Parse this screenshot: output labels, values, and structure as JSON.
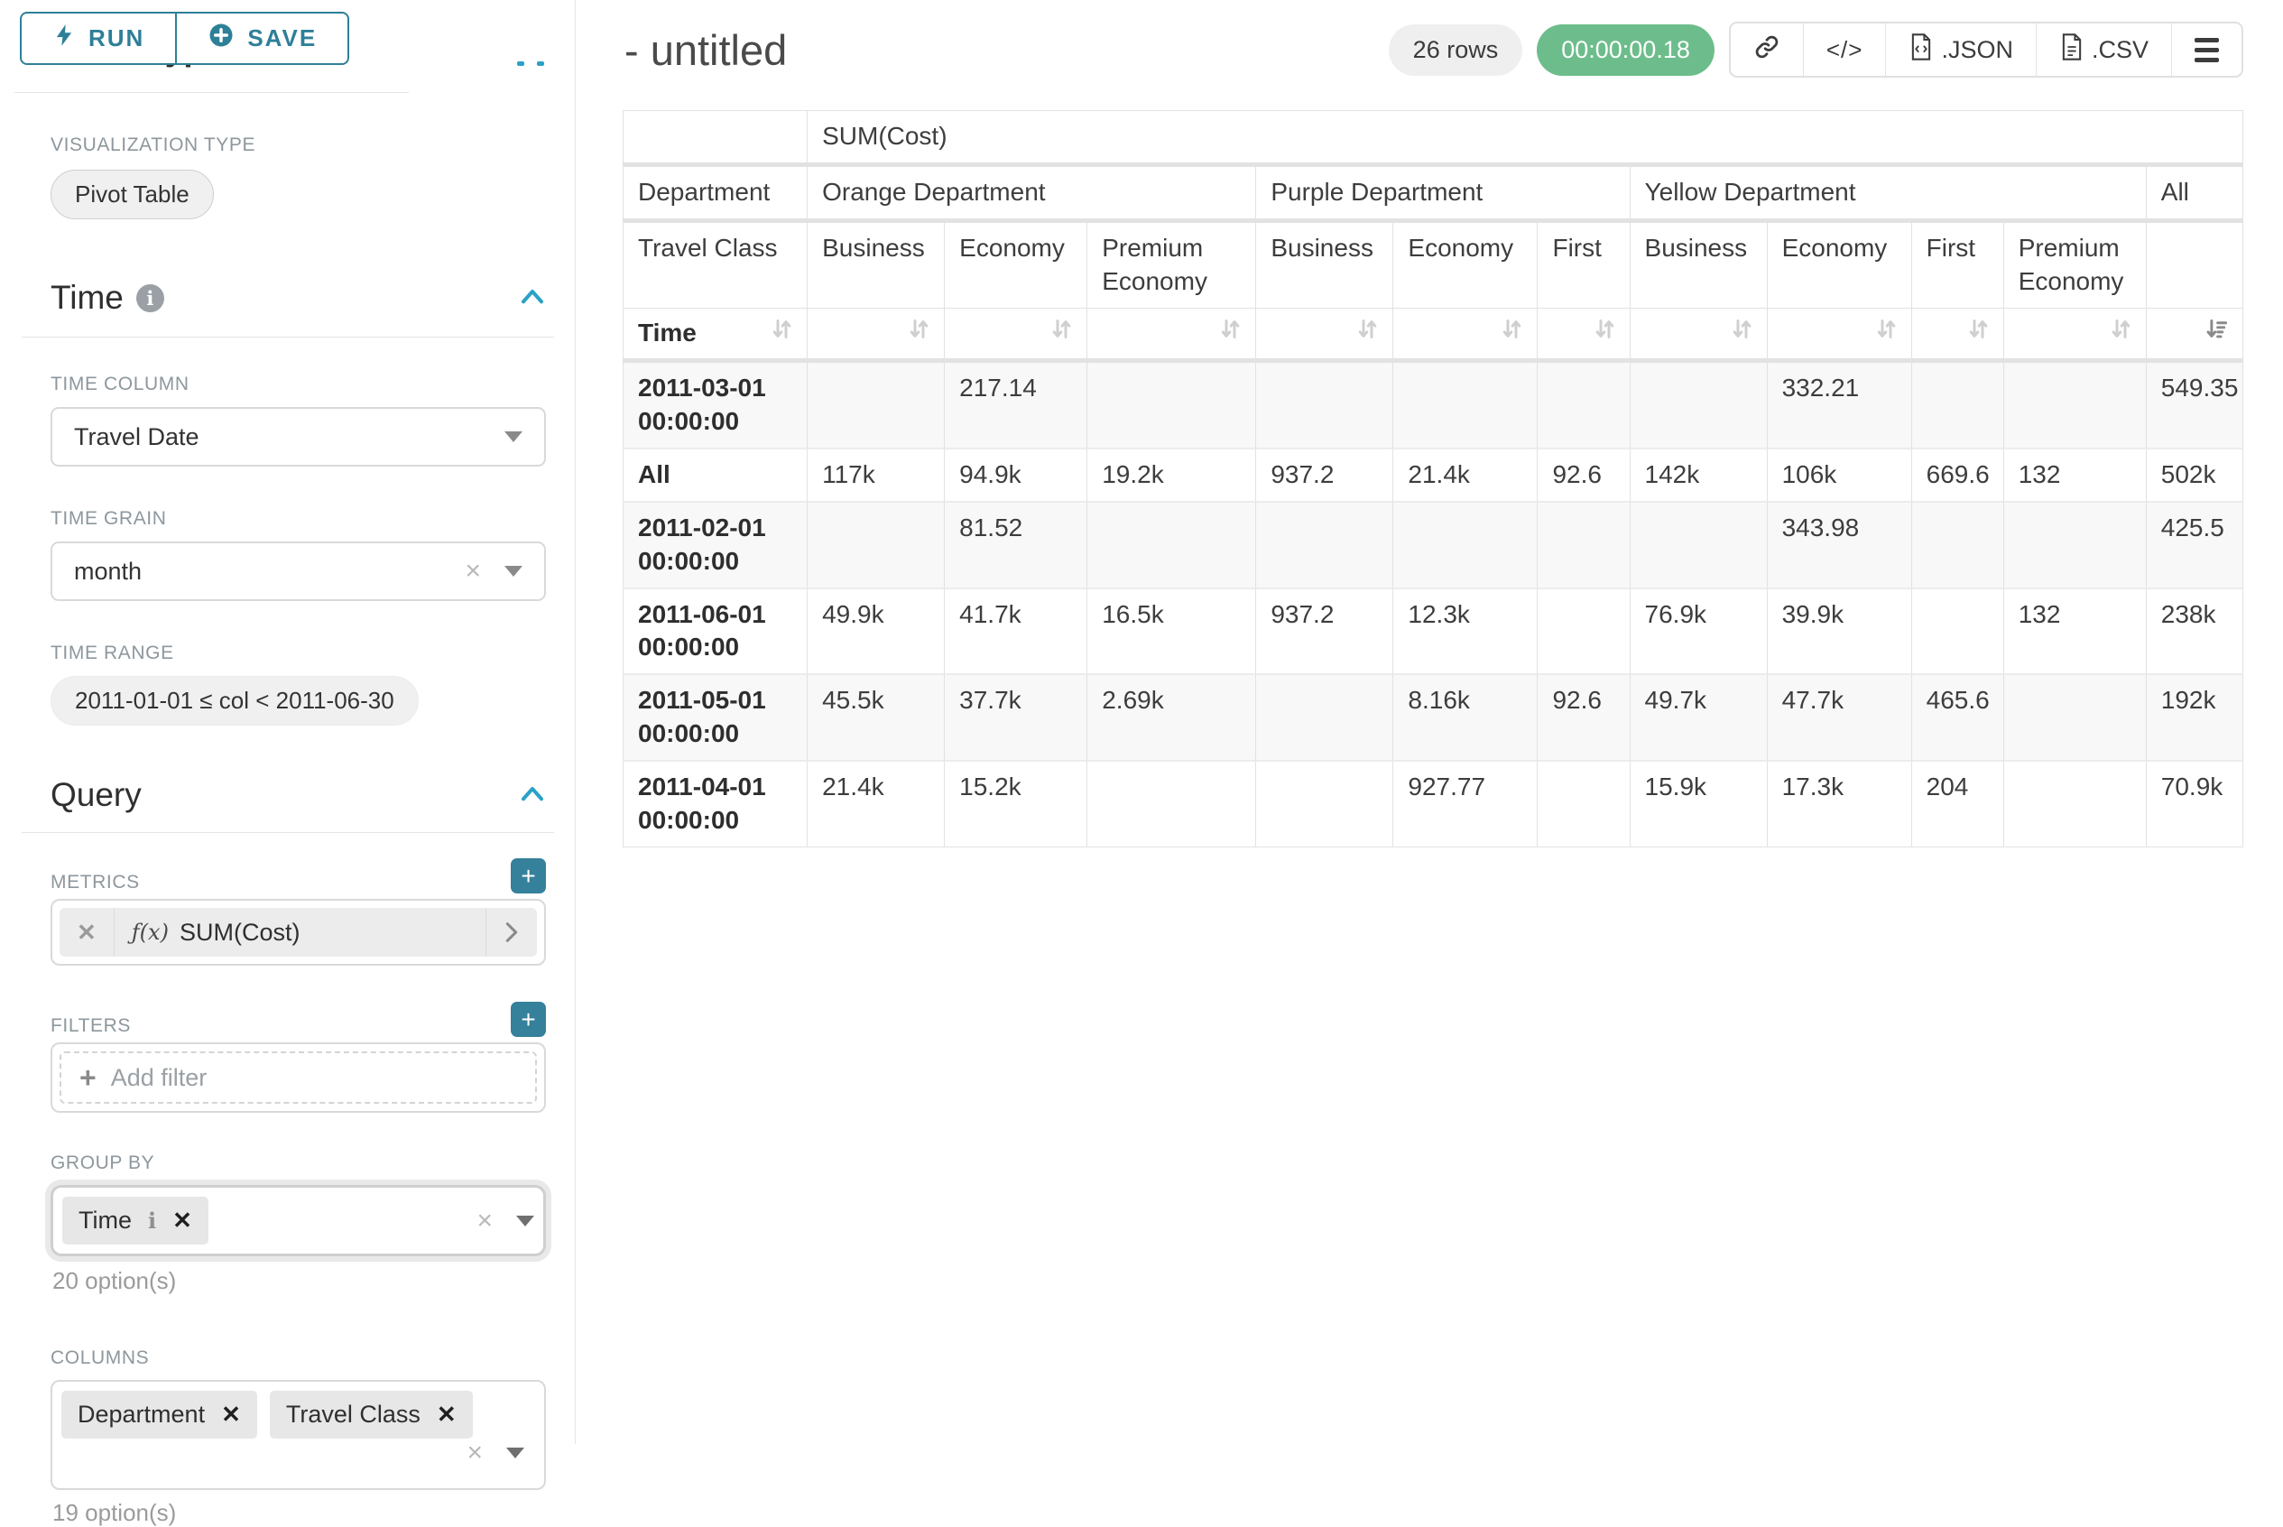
{
  "colors": {
    "accent_teal": "#2E7F98",
    "chevron_teal": "#2AA1C6",
    "success_green": "#6CBD8B",
    "label_gray": "#8d979d"
  },
  "sidebar": {
    "run_label": "RUN",
    "save_label": "SAVE",
    "chart_type_section": "Chart Type",
    "visualization_type_label": "VISUALIZATION TYPE",
    "visualization_type_value": "Pivot Table",
    "time_section": "Time",
    "time_column_label": "TIME COLUMN",
    "time_column_value": "Travel Date",
    "time_grain_label": "TIME GRAIN",
    "time_grain_value": "month",
    "time_range_label": "TIME RANGE",
    "time_range_value": "2011-01-01 ≤ col < 2011-06-30",
    "query_section": "Query",
    "metrics_label": "METRICS",
    "metric_fx": "ƒ(x)",
    "metric_value": "SUM(Cost)",
    "filters_label": "FILTERS",
    "add_filter_label": "Add filter",
    "group_by_label": "GROUP BY",
    "group_by_chips": [
      "Time"
    ],
    "group_by_options_note": "20 option(s)",
    "columns_label": "COLUMNS",
    "columns_chips": [
      "Department",
      "Travel Class"
    ],
    "columns_options_note": "19 option(s)"
  },
  "header": {
    "title": "- untitled",
    "row_count": "26 rows",
    "timer": "00:00:00.18",
    "code_icon_glyph": "</>",
    "export_buttons": [
      ".JSON",
      ".CSV"
    ]
  },
  "chart_data": {
    "type": "table",
    "title": "SUM(Cost)",
    "metric": "SUM(Cost)",
    "col_axis_label": "Department",
    "col_axis_sub_label": "Travel Class",
    "row_axis_label": "Time",
    "col_groups": [
      {
        "label": "Orange Department",
        "cols": [
          "Business",
          "Economy",
          "Premium Economy"
        ]
      },
      {
        "label": "Purple Department",
        "cols": [
          "Business",
          "Economy",
          "First"
        ]
      },
      {
        "label": "Yellow Department",
        "cols": [
          "Business",
          "Economy",
          "First",
          "Premium Economy"
        ]
      },
      {
        "label": "All",
        "cols": [
          ""
        ]
      }
    ],
    "sort": {
      "column": "All",
      "direction": "desc"
    },
    "rows": [
      {
        "label": "2011-03-01 00:00:00",
        "values": [
          "",
          "217.14",
          "",
          "",
          "",
          "",
          "",
          "332.21",
          "",
          "",
          "549.35"
        ]
      },
      {
        "label": "All",
        "values": [
          "117k",
          "94.9k",
          "19.2k",
          "937.2",
          "21.4k",
          "92.6",
          "142k",
          "106k",
          "669.6",
          "132",
          "502k"
        ]
      },
      {
        "label": "2011-02-01 00:00:00",
        "values": [
          "",
          "81.52",
          "",
          "",
          "",
          "",
          "",
          "343.98",
          "",
          "",
          "425.5"
        ]
      },
      {
        "label": "2011-06-01 00:00:00",
        "values": [
          "49.9k",
          "41.7k",
          "16.5k",
          "937.2",
          "12.3k",
          "",
          "76.9k",
          "39.9k",
          "",
          "132",
          "238k"
        ]
      },
      {
        "label": "2011-05-01 00:00:00",
        "values": [
          "45.5k",
          "37.7k",
          "2.69k",
          "",
          "8.16k",
          "92.6",
          "49.7k",
          "47.7k",
          "465.6",
          "",
          "192k"
        ]
      },
      {
        "label": "2011-04-01 00:00:00",
        "values": [
          "21.4k",
          "15.2k",
          "",
          "",
          "927.77",
          "",
          "15.9k",
          "17.3k",
          "204",
          "",
          "70.9k"
        ]
      }
    ]
  }
}
